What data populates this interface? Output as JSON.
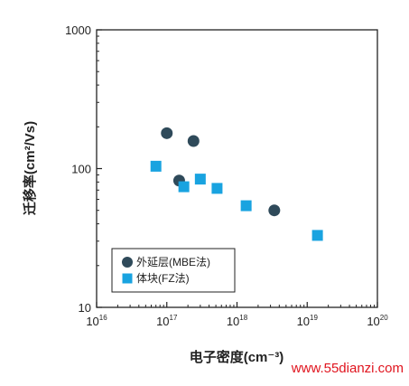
{
  "chart_data": {
    "type": "scatter",
    "xscale": "log",
    "yscale": "log",
    "xlim": [
      1e+16,
      1e+20
    ],
    "ylim": [
      10,
      1000
    ],
    "xlabel": "电子密度(cm⁻³)",
    "ylabel": "迁移率(cm²/Vs)",
    "x_ticks": [
      {
        "base": "10",
        "exp": "16",
        "value": 1e+16
      },
      {
        "base": "10",
        "exp": "17",
        "value": 1e+17
      },
      {
        "base": "10",
        "exp": "18",
        "value": 1e+18
      },
      {
        "base": "10",
        "exp": "19",
        "value": 1e+19
      },
      {
        "base": "10",
        "exp": "20",
        "value": 1e+20
      }
    ],
    "y_ticks": [
      {
        "label": "10",
        "value": 10
      },
      {
        "label": "100",
        "value": 100
      },
      {
        "label": "1000",
        "value": 1000
      }
    ],
    "grid": false,
    "legend_position": "bottom-left",
    "series": [
      {
        "name": "外延层(MBE法)",
        "marker": "circle",
        "color": "#2f4a5a",
        "points": [
          {
            "x": 1e+17,
            "y": 180
          },
          {
            "x": 2.4e+17,
            "y": 158
          },
          {
            "x": 1.5e+17,
            "y": 82
          },
          {
            "x": 3.4e+18,
            "y": 50
          }
        ]
      },
      {
        "name": "体块(FZ法)",
        "marker": "square",
        "color": "#19a3e0",
        "points": [
          {
            "x": 7e+16,
            "y": 104
          },
          {
            "x": 1.75e+17,
            "y": 74
          },
          {
            "x": 3e+17,
            "y": 84
          },
          {
            "x": 5.2e+17,
            "y": 72
          },
          {
            "x": 1.35e+18,
            "y": 54
          },
          {
            "x": 1.4e+19,
            "y": 33
          }
        ]
      }
    ]
  },
  "watermark": "www.55dianzi.com"
}
